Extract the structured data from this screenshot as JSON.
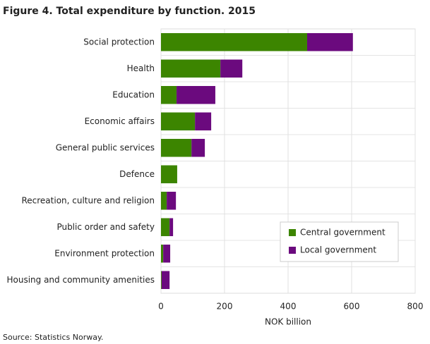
{
  "chart_data": {
    "type": "stacked-barh",
    "title": "Figure 4. Total expenditure by function. 2015",
    "xlabel": "NOK billion",
    "source": "Source: Statistics Norway.",
    "categories": [
      "Social protection",
      "Health",
      "Education",
      "Economic affairs",
      "General public services",
      "Defence",
      "Recreation, culture and religion",
      "Public order and safety",
      "Environment protection",
      "Housing and community amenities"
    ],
    "series": [
      {
        "name": "Central government",
        "color": "#3c8500",
        "values": [
          460,
          187,
          49,
          107,
          96,
          51,
          18,
          27,
          7,
          2
        ]
      },
      {
        "name": "Local government",
        "color": "#6b0a7e",
        "values": [
          144,
          69,
          122,
          51,
          42,
          0,
          29,
          11,
          22,
          25
        ]
      }
    ],
    "xlim": [
      0,
      800
    ],
    "xticks": [
      0,
      200,
      400,
      600,
      800
    ],
    "grid": true
  }
}
